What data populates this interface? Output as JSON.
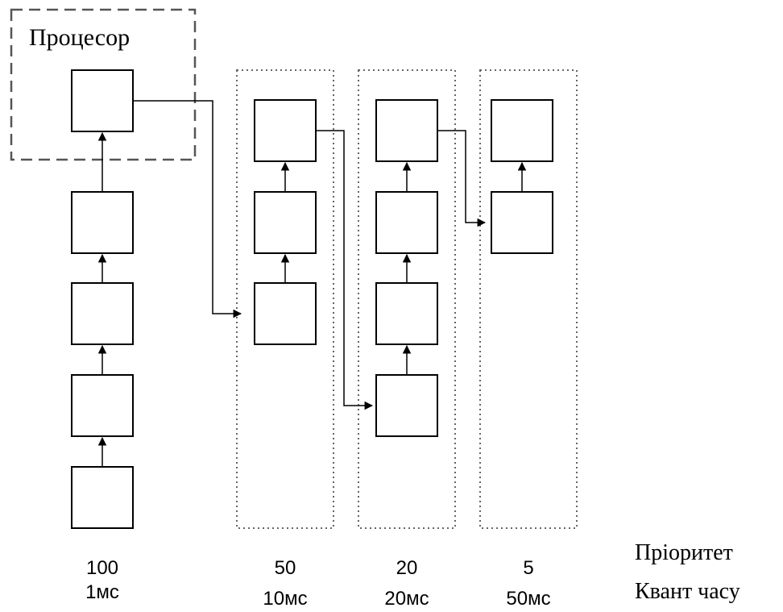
{
  "processor_label": "Процесор",
  "queues": [
    {
      "priority": "100",
      "quantum": "1мс"
    },
    {
      "priority": "50",
      "quantum": "10мс"
    },
    {
      "priority": "20",
      "quantum": "20мс"
    },
    {
      "priority": "5",
      "quantum": "50мс"
    }
  ],
  "legend": {
    "priority_label": "Пріоритет",
    "quantum_label": "Квант часу"
  },
  "colors": {
    "stroke": "#000000",
    "dashed_frame": "#555555",
    "dotted_frame": "#666666"
  }
}
